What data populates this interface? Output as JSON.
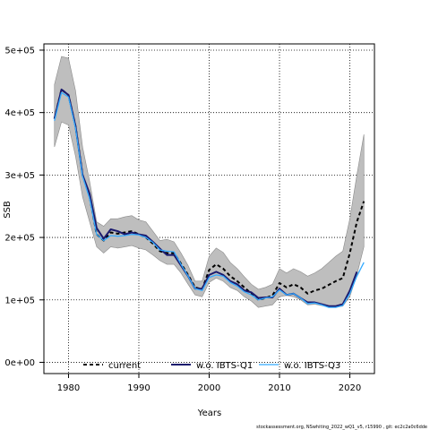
{
  "chart_data": {
    "type": "line",
    "xlabel": "Years",
    "ylabel": "SSB",
    "xlim": [
      1976.5,
      2023.5
    ],
    "ylim": [
      -18000,
      510000
    ],
    "x_ticks": [
      1980,
      1990,
      2000,
      2010,
      2020
    ],
    "y_ticks": [
      0,
      100000,
      200000,
      300000,
      400000,
      500000
    ],
    "y_tick_labels": [
      "0e+00",
      "1e+05",
      "2e+05",
      "3e+05",
      "4e+05",
      "5e+05"
    ],
    "grid": true,
    "legend_position": "bottom",
    "footer": "stockassessment.org, NSwhiting_2022_wQ1_v5, r15990 , git: ec2c2a0c6dde",
    "colors": {
      "band": "#bebebe",
      "current": "#000000",
      "wo_q1": "#1a1a6e",
      "wo_q3": "#33aaff"
    },
    "band": {
      "x": [
        1978,
        1979,
        1980,
        1981,
        1982,
        1983,
        1984,
        1985,
        1986,
        1987,
        1988,
        1989,
        1990,
        1991,
        1992,
        1993,
        1994,
        1995,
        1996,
        1997,
        1998,
        1999,
        2000,
        2001,
        2002,
        2003,
        2004,
        2005,
        2006,
        2007,
        2008,
        2009,
        2010,
        2011,
        2012,
        2013,
        2014,
        2015,
        2016,
        2017,
        2018,
        2019,
        2020,
        2021,
        2022
      ],
      "upper": [
        445000,
        490000,
        487000,
        435000,
        345000,
        290000,
        225000,
        218000,
        230000,
        230000,
        233000,
        235000,
        228000,
        225000,
        210000,
        195000,
        197000,
        193000,
        175000,
        155000,
        130000,
        130000,
        170000,
        183000,
        176000,
        160000,
        150000,
        137000,
        125000,
        117000,
        120000,
        125000,
        150000,
        143000,
        150000,
        145000,
        138000,
        143000,
        150000,
        160000,
        170000,
        178000,
        230000,
        300000,
        365000
      ],
      "lower": [
        345000,
        385000,
        380000,
        330000,
        265000,
        225000,
        185000,
        175000,
        185000,
        183000,
        185000,
        187000,
        183000,
        180000,
        172000,
        163000,
        157000,
        157000,
        143000,
        125000,
        108000,
        105000,
        128000,
        135000,
        130000,
        120000,
        115000,
        105000,
        98000,
        88000,
        90000,
        92000,
        105000,
        107000,
        105000,
        100000,
        92000,
        93000,
        91000,
        88000,
        88000,
        90000,
        105000,
        140000,
        185000
      ]
    },
    "series": [
      {
        "name": "current",
        "x": [
          1978,
          1979,
          1980,
          1981,
          1982,
          1983,
          1984,
          1985,
          1986,
          1987,
          1988,
          1989,
          1990,
          1991,
          1992,
          1993,
          1994,
          1995,
          1996,
          1997,
          1998,
          1999,
          2000,
          2001,
          2002,
          2003,
          2004,
          2005,
          2006,
          2007,
          2008,
          2009,
          2010,
          2011,
          2012,
          2013,
          2014,
          2015,
          2016,
          2017,
          2018,
          2019,
          2020,
          2021,
          2022
        ],
        "values": [
          390000,
          437000,
          428000,
          378000,
          300000,
          265000,
          205000,
          195000,
          208000,
          206000,
          208000,
          210000,
          205000,
          200000,
          190000,
          178000,
          175000,
          175000,
          158000,
          140000,
          120000,
          117000,
          148000,
          157000,
          150000,
          138000,
          130000,
          120000,
          110000,
          100000,
          103000,
          107000,
          127000,
          120000,
          125000,
          120000,
          110000,
          115000,
          118000,
          124000,
          130000,
          135000,
          175000,
          225000,
          258000
        ]
      },
      {
        "name": "w.o. IBTS-Q1",
        "x": [
          1978,
          1979,
          1980,
          1981,
          1982,
          1983,
          1984,
          1985,
          1986,
          1987,
          1988,
          1989,
          1990,
          1991,
          1992,
          1993,
          1994,
          1995,
          1996,
          1997,
          1998,
          1999,
          2000,
          2001,
          2002,
          2003,
          2004,
          2005,
          2006,
          2007,
          2008,
          2009,
          2010,
          2011,
          2012,
          2013,
          2014,
          2015,
          2016,
          2017,
          2018,
          2019,
          2020,
          2021
        ],
        "values": [
          390000,
          437000,
          428000,
          378000,
          300000,
          270000,
          215000,
          198000,
          213000,
          210000,
          205000,
          208000,
          205000,
          203000,
          193000,
          182000,
          172000,
          172000,
          155000,
          138000,
          118000,
          118000,
          140000,
          145000,
          140000,
          130000,
          125000,
          115000,
          112000,
          103000,
          104000,
          104000,
          118000,
          108000,
          110000,
          103000,
          96000,
          96000,
          93000,
          90000,
          90000,
          93000,
          115000,
          145000
        ]
      },
      {
        "name": "w.o. IBTS-Q3",
        "x": [
          1978,
          1979,
          1980,
          1981,
          1982,
          1983,
          1984,
          1985,
          1986,
          1987,
          1988,
          1989,
          1990,
          1991,
          1992,
          1993,
          1994,
          1995,
          1996,
          1997,
          1998,
          1999,
          2000,
          2001,
          2002,
          2003,
          2004,
          2005,
          2006,
          2007,
          2008,
          2009,
          2010,
          2011,
          2012,
          2013,
          2014,
          2015,
          2016,
          2017,
          2018,
          2019,
          2020,
          2021,
          2022
        ],
        "values": [
          387000,
          432000,
          425000,
          375000,
          298000,
          262000,
          205000,
          195000,
          203000,
          202000,
          203000,
          205000,
          204000,
          200000,
          192000,
          180000,
          178000,
          177000,
          157000,
          138000,
          118000,
          115000,
          136000,
          140000,
          138000,
          128000,
          122000,
          113000,
          108000,
          100000,
          103000,
          105000,
          116000,
          108000,
          110000,
          103000,
          94000,
          95000,
          92000,
          88000,
          88000,
          91000,
          110000,
          138000,
          160000
        ]
      }
    ]
  }
}
